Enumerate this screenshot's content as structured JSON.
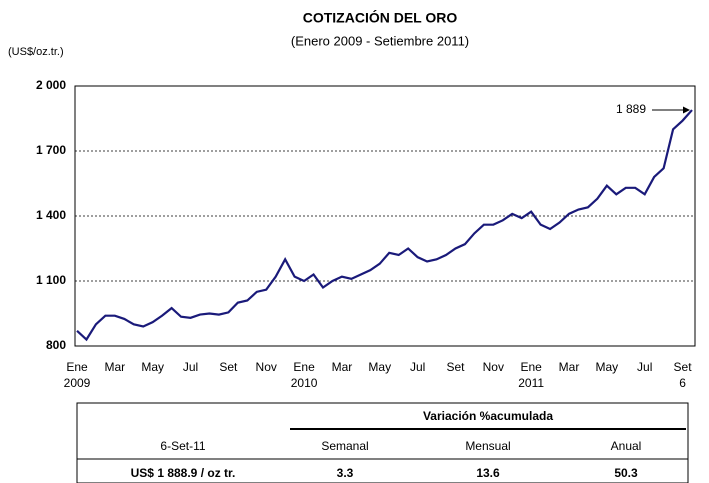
{
  "chart_data": {
    "type": "line",
    "title": "COTIZACIÓN DEL ORO",
    "subtitle": "(Enero 2009 - Setiembre 2011)",
    "y_label": "(US$/oz.tr.)",
    "categories": [
      "Ene",
      null,
      null,
      null,
      "Mar",
      null,
      null,
      null,
      "May",
      null,
      null,
      null,
      "Jul",
      null,
      null,
      null,
      "Set",
      null,
      null,
      null,
      "Nov",
      null,
      null,
      null,
      "Ene",
      null,
      null,
      null,
      "Mar",
      null,
      null,
      null,
      "May",
      null,
      null,
      null,
      "Jul",
      null,
      null,
      null,
      "Set",
      null,
      null,
      null,
      "Nov",
      null,
      null,
      null,
      "Ene",
      null,
      null,
      null,
      "Mar",
      null,
      null,
      null,
      "May",
      null,
      null,
      null,
      "Jul",
      null,
      null,
      null,
      "Set",
      null
    ],
    "year_labels": [
      "2009",
      null,
      null,
      null,
      null,
      null,
      null,
      null,
      null,
      null,
      null,
      null,
      null,
      null,
      null,
      null,
      null,
      null,
      null,
      null,
      null,
      null,
      null,
      null,
      "2010",
      null,
      null,
      null,
      null,
      null,
      null,
      null,
      null,
      null,
      null,
      null,
      null,
      null,
      null,
      null,
      null,
      null,
      null,
      null,
      null,
      null,
      null,
      null,
      "2011",
      null,
      null,
      null,
      null,
      null,
      null,
      null,
      null,
      null,
      null,
      null,
      null,
      null,
      null,
      null,
      "6",
      null
    ],
    "series": [
      {
        "name": "Oro",
        "color": "#1a1a7a",
        "values": [
          870,
          830,
          900,
          940,
          940,
          925,
          900,
          890,
          910,
          940,
          975,
          935,
          930,
          945,
          950,
          945,
          955,
          1000,
          1010,
          1050,
          1060,
          1120,
          1200,
          1120,
          1100,
          1130,
          1070,
          1100,
          1120,
          1110,
          1130,
          1150,
          1180,
          1230,
          1220,
          1250,
          1210,
          1190,
          1200,
          1220,
          1250,
          1270,
          1320,
          1360,
          1360,
          1380,
          1410,
          1390,
          1420,
          1360,
          1340,
          1370,
          1410,
          1430,
          1440,
          1480,
          1540,
          1500,
          1530,
          1530,
          1500,
          1580,
          1620,
          1800,
          1840,
          1889
        ]
      }
    ],
    "annotation": "1 889",
    "ylim": [
      800,
      2000
    ],
    "yticks": [
      800,
      {
        "value": 1100,
        "label": "1 100"
      },
      {
        "value": 1400,
        "label": "1 400"
      },
      {
        "value": 1700,
        "label": "1 700"
      },
      {
        "value": 2000,
        "label": "2 000"
      }
    ]
  },
  "table": {
    "group_header": "Variación %acumulada",
    "columns": [
      "6-Set-11",
      "Semanal",
      "Mensual",
      "Anual"
    ],
    "row": [
      "US$ 1 888.9 / oz tr.",
      "3.3",
      "13.6",
      "50.3"
    ]
  }
}
